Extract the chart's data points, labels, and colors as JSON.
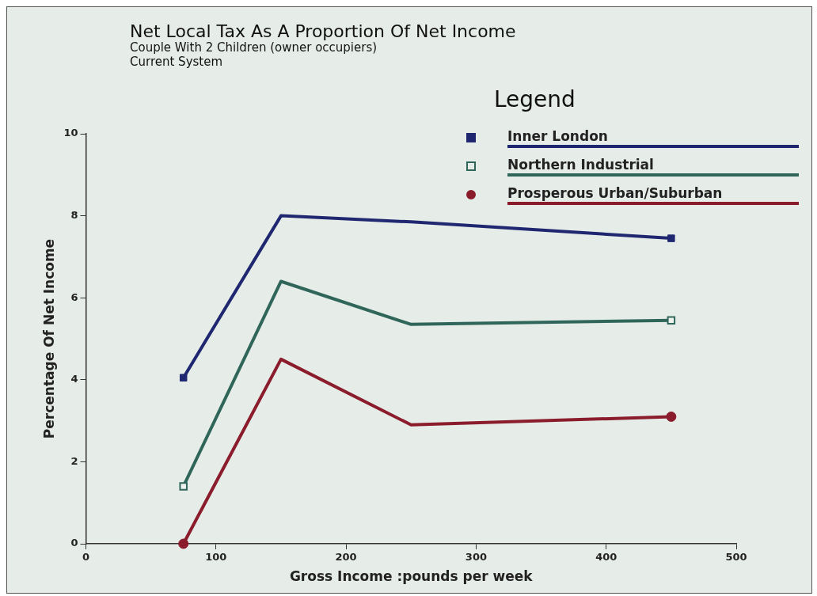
{
  "chart_data": {
    "type": "line",
    "title": "Net Local Tax As A Proportion Of Net Income",
    "subtitle": "Couple With 2 Children (owner occupiers)",
    "annotations": [
      "Current System"
    ],
    "xlabel": "Gross Income :pounds per week",
    "ylabel": "Percentage Of Net Income",
    "legend_title": "Legend",
    "legend": "top right",
    "x": [
      75,
      150,
      250,
      450
    ],
    "series": [
      {
        "name": "Inner London",
        "color": "#1f2770",
        "marker": "square",
        "values": [
          4.05,
          8.0,
          7.85,
          7.45
        ]
      },
      {
        "name": "Northern Industrial",
        "color": "#2f6659",
        "marker": "square",
        "values": [
          1.4,
          6.4,
          5.35,
          5.45
        ]
      },
      {
        "name": "Prosperous Urban/Suburban",
        "color": "#8a1c2c",
        "marker": "circle",
        "values": [
          0,
          4.5,
          2.9,
          3.1
        ]
      }
    ],
    "xlim": [
      0,
      500
    ],
    "xticks": [
      0,
      100,
      200,
      300,
      400,
      500
    ],
    "ylim": [
      0,
      10
    ],
    "yticks": [
      0,
      2,
      4,
      6,
      8,
      10
    ]
  }
}
